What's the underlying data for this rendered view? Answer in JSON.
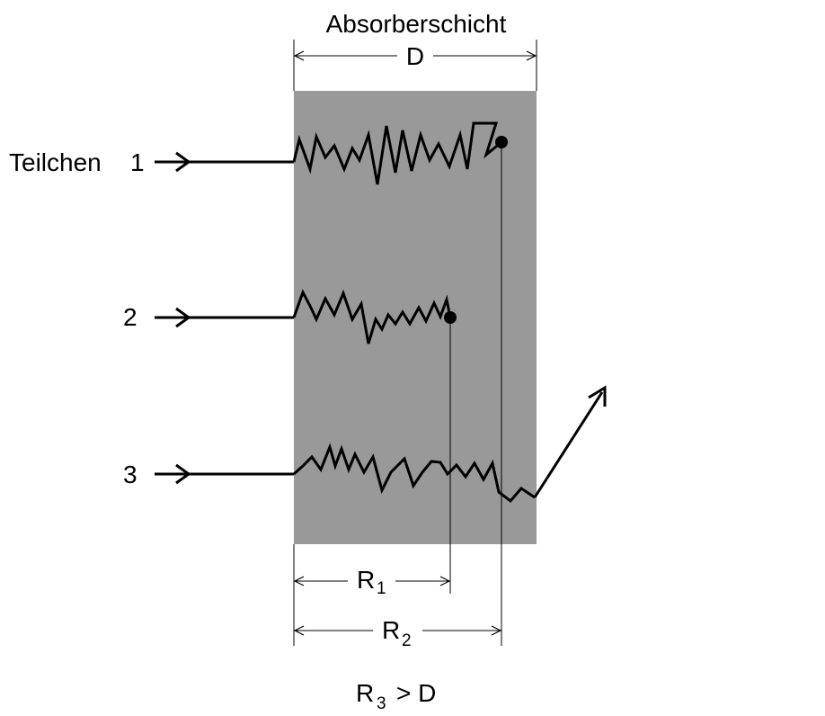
{
  "absorber": {
    "title": "Absorberschicht",
    "thickness_label": "D",
    "fill_color": "#999999"
  },
  "particles": [
    {
      "id": "1",
      "prefix": "Teilchen",
      "label": "1"
    },
    {
      "id": "2",
      "prefix": "",
      "label": "2"
    },
    {
      "id": "3",
      "prefix": "",
      "label": "3"
    }
  ],
  "ranges": {
    "r1": {
      "symbol": "R",
      "sub": "1"
    },
    "r2": {
      "symbol": "R",
      "sub": "2"
    },
    "r3": {
      "symbol": "R",
      "sub": "3",
      "relation": "> D"
    }
  },
  "colors": {
    "ink": "#000000",
    "background": "#ffffff"
  }
}
